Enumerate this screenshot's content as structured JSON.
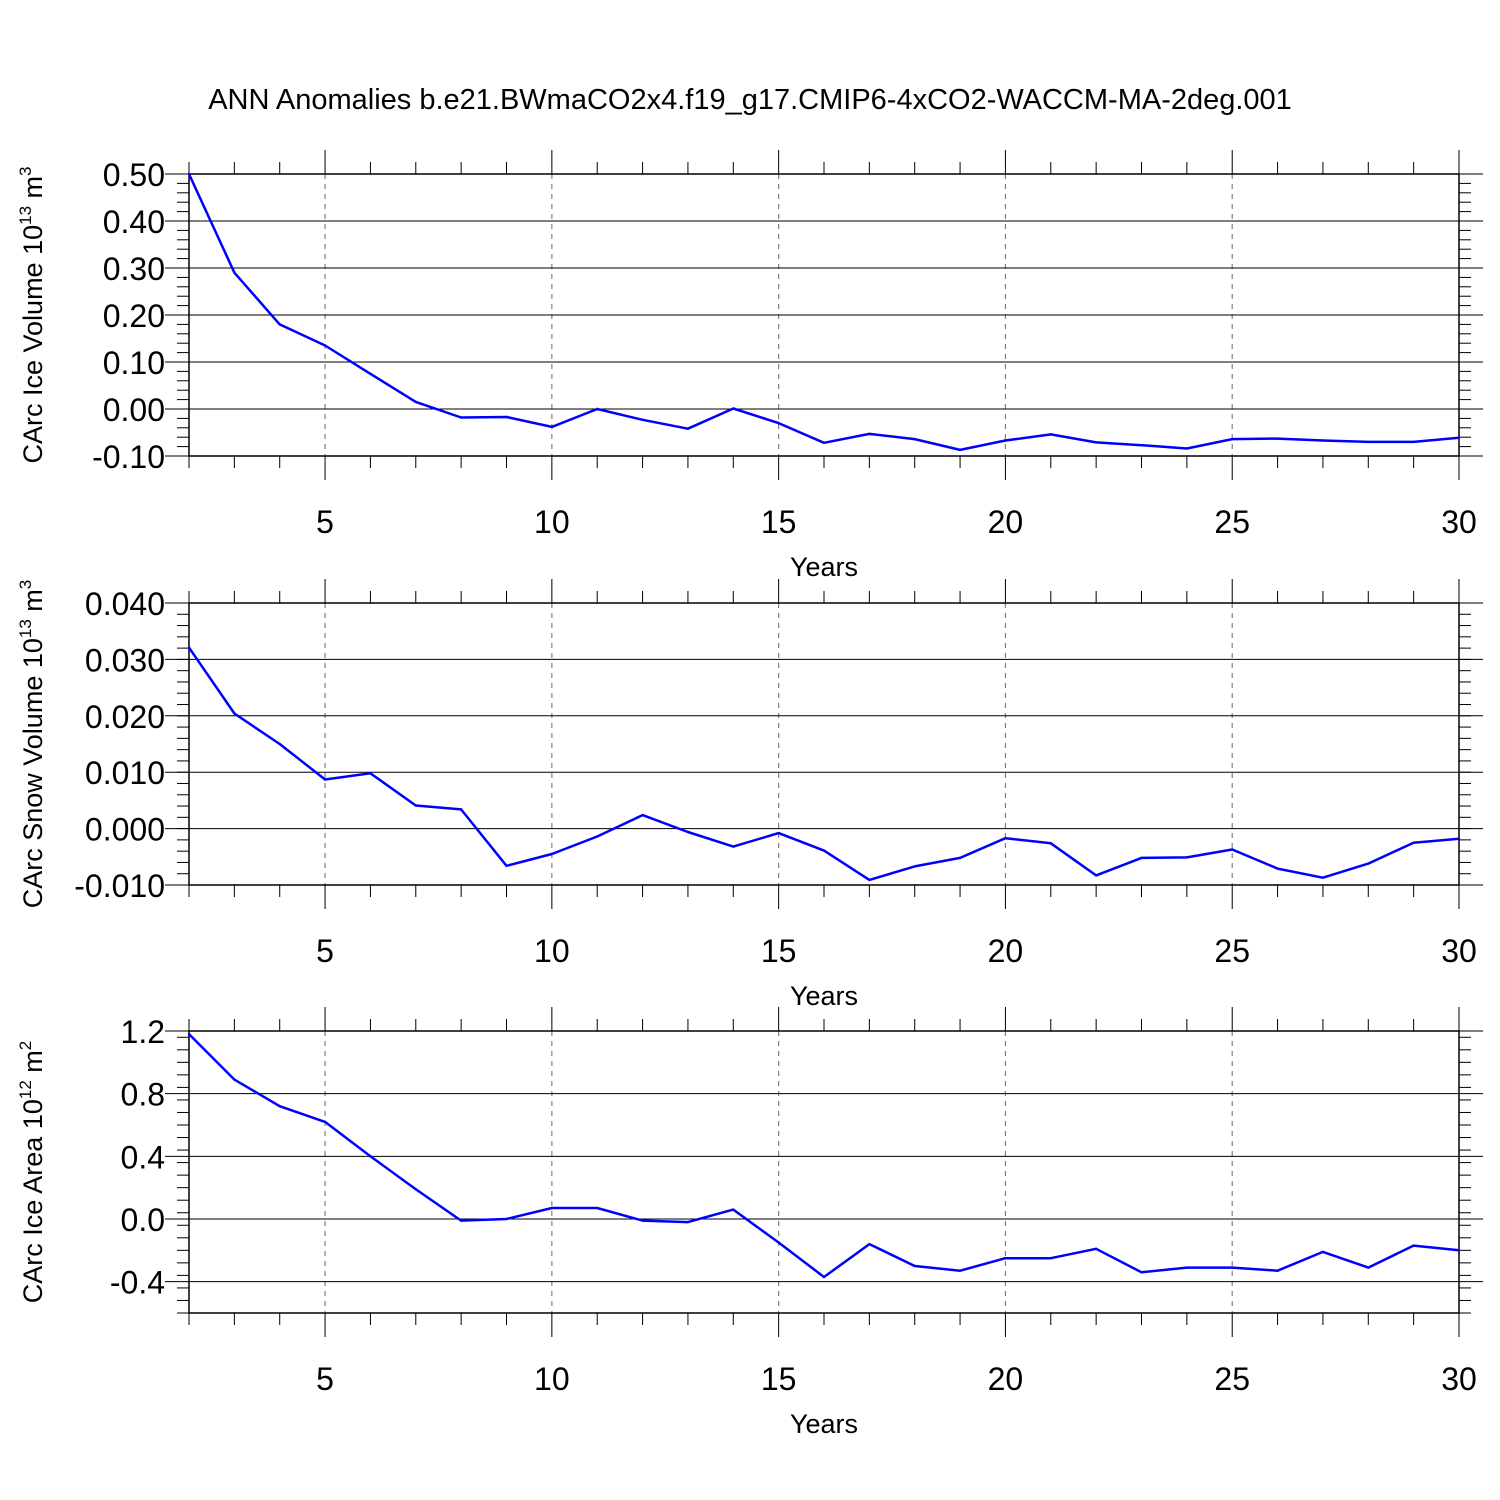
{
  "title": "ANN Anomalies b.e21.BWmaCO2x4.f19_g17.CMIP6-4xCO2-WACCM-MA-2deg.001",
  "line_color": "#0000ff",
  "chart_data": [
    {
      "type": "line",
      "ylabel": "CArc Ice Volume 10",
      "ylabel_exp": "13",
      "ylabel_unit": " m",
      "ylabel_unit_exp": "3",
      "xlabel": "Years",
      "xlim": [
        2,
        30
      ],
      "ylim": [
        -0.1,
        0.5
      ],
      "yticks": [
        -0.1,
        0.0,
        0.1,
        0.2,
        0.3,
        0.4,
        0.5
      ],
      "ytick_labels": [
        "-0.10",
        "0.00",
        "0.10",
        "0.20",
        "0.30",
        "0.40",
        "0.50"
      ],
      "xticks": [
        5,
        10,
        15,
        20,
        25,
        30
      ],
      "xtick_labels": [
        "5",
        "10",
        "15",
        "20",
        "25",
        "30"
      ],
      "grid": "vertical dashed at major x ticks",
      "x": [
        2,
        3,
        4,
        5,
        6,
        7,
        8,
        9,
        10,
        11,
        12,
        13,
        14,
        15,
        16,
        17,
        18,
        19,
        20,
        21,
        22,
        23,
        24,
        25,
        26,
        27,
        28,
        29,
        30
      ],
      "y": [
        0.5,
        0.29,
        0.18,
        0.135,
        0.075,
        0.015,
        -0.018,
        -0.017,
        -0.038,
        0.0,
        -0.023,
        -0.042,
        0.001,
        -0.03,
        -0.072,
        -0.053,
        -0.064,
        -0.087,
        -0.067,
        -0.054,
        -0.071,
        -0.077,
        -0.084,
        -0.064,
        -0.063,
        -0.067,
        -0.07,
        -0.07,
        -0.061
      ]
    },
    {
      "type": "line",
      "ylabel": "CArc Snow Volume 10",
      "ylabel_exp": "13",
      "ylabel_unit": " m",
      "ylabel_unit_exp": "3",
      "xlabel": "Years",
      "xlim": [
        2,
        30
      ],
      "ylim": [
        -0.01,
        0.04
      ],
      "yticks": [
        -0.01,
        0.0,
        0.01,
        0.02,
        0.03,
        0.04
      ],
      "ytick_labels": [
        "-0.010",
        "0.000",
        "0.010",
        "0.020",
        "0.030",
        "0.040"
      ],
      "xticks": [
        5,
        10,
        15,
        20,
        25,
        30
      ],
      "xtick_labels": [
        "5",
        "10",
        "15",
        "20",
        "25",
        "30"
      ],
      "grid": "vertical dashed at major x ticks",
      "x": [
        2,
        3,
        4,
        5,
        6,
        7,
        8,
        9,
        10,
        11,
        12,
        13,
        14,
        15,
        16,
        17,
        18,
        19,
        20,
        21,
        22,
        23,
        24,
        25,
        26,
        27,
        28,
        29,
        30
      ],
      "y": [
        0.0321,
        0.0204,
        0.015,
        0.0087,
        0.0098,
        0.0041,
        0.0034,
        -0.0066,
        -0.0045,
        -0.0014,
        0.0024,
        -0.0006,
        -0.0032,
        -0.0008,
        -0.0039,
        -0.0091,
        -0.0067,
        -0.0052,
        -0.0017,
        -0.0026,
        -0.0083,
        -0.0052,
        -0.0051,
        -0.0037,
        -0.0071,
        -0.0087,
        -0.0062,
        -0.0025,
        -0.0018
      ]
    },
    {
      "type": "line",
      "ylabel": "CArc Ice Area 10",
      "ylabel_exp": "12",
      "ylabel_unit": " m",
      "ylabel_unit_exp": "2",
      "xlabel": "Years",
      "xlim": [
        2,
        30
      ],
      "ylim": [
        -0.6,
        1.2
      ],
      "yticks": [
        -0.4,
        0.0,
        0.4,
        0.8,
        1.2
      ],
      "ytick_labels": [
        "-0.4",
        "0.0",
        "0.4",
        "0.8",
        "1.2"
      ],
      "xticks": [
        5,
        10,
        15,
        20,
        25,
        30
      ],
      "xtick_labels": [
        "5",
        "10",
        "15",
        "20",
        "25",
        "30"
      ],
      "grid": "vertical dashed at major x ticks",
      "x": [
        2,
        3,
        4,
        5,
        6,
        7,
        8,
        9,
        10,
        11,
        12,
        13,
        14,
        15,
        16,
        17,
        18,
        19,
        20,
        21,
        22,
        23,
        24,
        25,
        26,
        27,
        28,
        29,
        30
      ],
      "y": [
        1.18,
        0.89,
        0.72,
        0.62,
        0.4,
        0.19,
        -0.01,
        0.0,
        0.07,
        0.07,
        -0.01,
        -0.02,
        0.06,
        -0.15,
        -0.37,
        -0.16,
        -0.3,
        -0.33,
        -0.25,
        -0.25,
        -0.19,
        -0.34,
        -0.31,
        -0.31,
        -0.33,
        -0.21,
        -0.31,
        -0.17,
        -0.2
      ]
    }
  ]
}
